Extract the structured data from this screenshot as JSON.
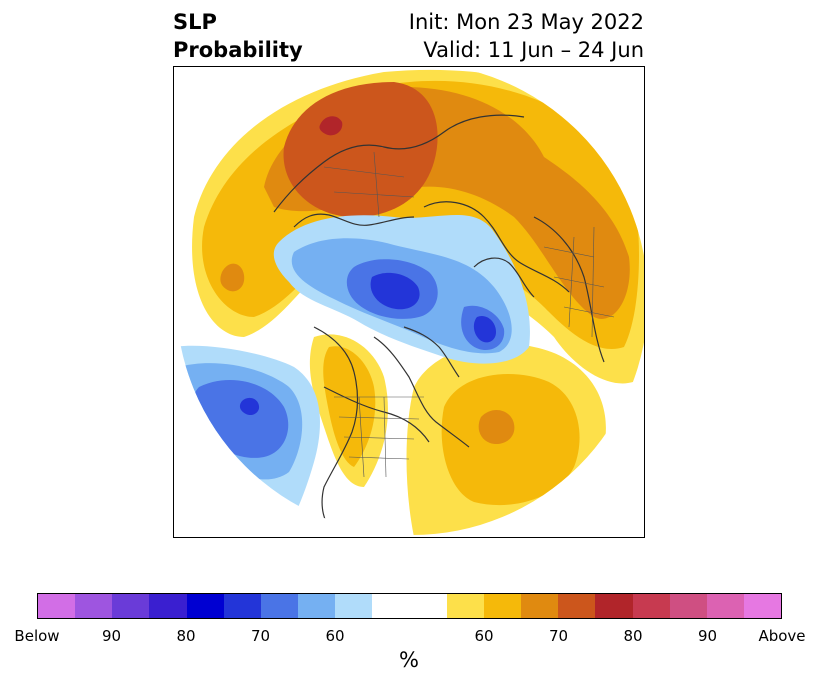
{
  "title": {
    "left_line1": "SLP",
    "left_line2": "Probability",
    "right_line1": "Init: Mon 23 May 2022",
    "right_line2": "Valid: 11 Jun – 24 Jun"
  },
  "colorbar": {
    "colors": [
      "#d26ee6",
      "#9e55e0",
      "#6a3bd8",
      "#3a1fd0",
      "#0000d2",
      "#2335d8",
      "#4a74e6",
      "#75b0f2",
      "#b0dcfa",
      "#ffffff",
      "#ffffff",
      "#fde04a",
      "#f5b90a",
      "#e08a10",
      "#cc561c",
      "#b1252a",
      "#c73a50",
      "#cf4f82",
      "#dc62b2",
      "#e678e2"
    ],
    "labels": [
      "Below",
      "90",
      "80",
      "70",
      "60",
      "60",
      "70",
      "80",
      "90",
      "Above"
    ],
    "unit": "%"
  },
  "map": {
    "projection": "north-polar-stereographic",
    "fill_colors": {
      "light_yellow": "#fde04a",
      "gold": "#f5b90a",
      "orange": "#e08a10",
      "dark_orange": "#cc561c",
      "red": "#b1252a",
      "light_blue": "#b0dcfa",
      "sky_blue": "#75b0f2",
      "medium_blue": "#4a74e6",
      "blue": "#2335d8",
      "coastline": "#333333"
    }
  }
}
